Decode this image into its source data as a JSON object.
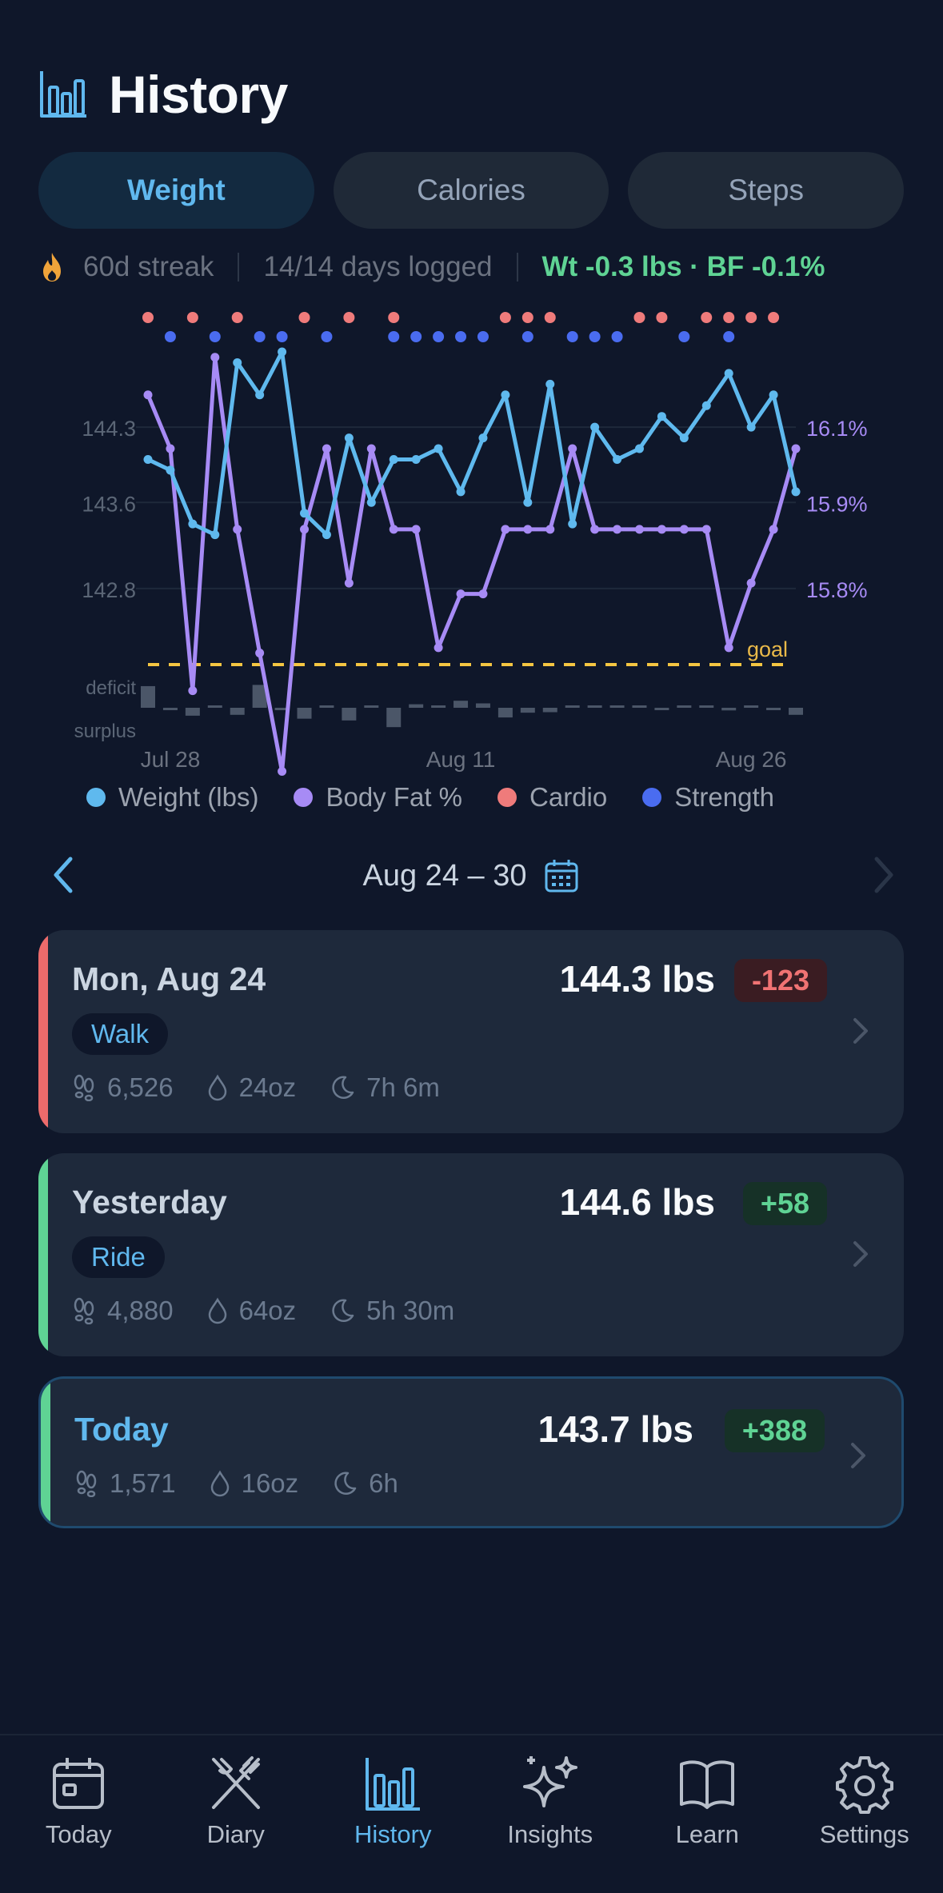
{
  "header": {
    "title": "History",
    "icon": "bar-chart-icon"
  },
  "tabs": [
    {
      "label": "Weight",
      "active": true
    },
    {
      "label": "Calories",
      "active": false
    },
    {
      "label": "Steps",
      "active": false
    }
  ],
  "status": {
    "streak": "60d streak",
    "logged": "14/14 days logged",
    "delta": "Wt -0.3 lbs · BF -0.1%"
  },
  "chart_data": {
    "type": "line",
    "x_ticks": [
      "Jul 28",
      "Aug 11",
      "Aug 26"
    ],
    "x_tick_index": [
      1,
      14,
      27
    ],
    "weight_ticks": [
      "144.3",
      "143.6",
      "142.8"
    ],
    "weight_tick_values": [
      144.3,
      143.6,
      142.8
    ],
    "weight_range": [
      142.1,
      145.0
    ],
    "bodyfat_ticks": [
      "16.1%",
      "15.9%",
      "15.8%"
    ],
    "bodyfat_tick_values": [
      16.1,
      15.9,
      15.8
    ],
    "bodyfat_range": [
      15.7,
      16.28
    ],
    "goal_label": "goal",
    "balance_labels": {
      "deficit": "deficit",
      "surplus": "surplus"
    },
    "series": [
      {
        "name": "Weight (lbs)",
        "color": "#5fb9ee",
        "axis": "left",
        "values": [
          144.0,
          143.9,
          143.4,
          143.3,
          144.9,
          144.6,
          145.0,
          143.5,
          143.3,
          144.2,
          143.6,
          144.0,
          144.0,
          144.1,
          143.7,
          144.2,
          144.6,
          143.6,
          144.7,
          143.4,
          144.3,
          144.0,
          144.1,
          144.4,
          144.2,
          144.5,
          144.8,
          144.3,
          144.6,
          143.7
        ]
      },
      {
        "name": "Body Fat %",
        "color": "#a78bf5",
        "axis": "right",
        "values": [
          16.2,
          16.1,
          15.65,
          16.27,
          15.95,
          15.72,
          15.5,
          15.95,
          16.1,
          15.85,
          16.1,
          15.95,
          15.95,
          15.73,
          15.83,
          15.83,
          15.95,
          15.95,
          15.95,
          16.1,
          15.95,
          15.95,
          15.95,
          15.95,
          15.95,
          15.95,
          15.73,
          15.85,
          15.95,
          16.1
        ]
      },
      {
        "name": "Cardio",
        "color": "#ef7b7b",
        "days": [
          0,
          2,
          4,
          7,
          9,
          11,
          16,
          17,
          18,
          22,
          23,
          25,
          26,
          27,
          28
        ]
      },
      {
        "name": "Strength",
        "color": "#4a6cf0",
        "days": [
          1,
          3,
          5,
          6,
          8,
          11,
          12,
          13,
          14,
          15,
          17,
          19,
          20,
          21,
          24,
          26
        ]
      }
    ],
    "calorie_balance": [
      -123,
      0,
      45,
      -6,
      40,
      -130,
      0,
      62,
      -10,
      72,
      -4,
      110,
      -20,
      -8,
      -40,
      -25,
      55,
      28,
      25,
      -8,
      -8,
      -8,
      -12,
      0,
      -8,
      -8,
      15,
      -8,
      10,
      40
    ]
  },
  "week_nav": {
    "range": "Aug 24 – 30"
  },
  "cards": [
    {
      "day": "Mon, Aug 24",
      "weight": "144.3 lbs",
      "badge": "-123",
      "badge_type": "neg",
      "activity": "Walk",
      "steps": "6,526",
      "water": "24oz",
      "sleep": "7h 6m",
      "accent": "#ec6b6b"
    },
    {
      "day": "Yesterday",
      "weight": "144.6 lbs",
      "badge": "+58",
      "badge_type": "pos",
      "activity": "Ride",
      "steps": "4,880",
      "water": "64oz",
      "sleep": "5h 30m",
      "accent": "#5fd394"
    },
    {
      "day": "Today",
      "weight": "143.7 lbs",
      "badge": "+388",
      "badge_type": "pos",
      "steps": "1,571",
      "water": "16oz",
      "sleep": "6h",
      "accent": "#5fd394"
    }
  ],
  "tabbar": [
    {
      "label": "Today",
      "icon": "calendar-icon"
    },
    {
      "label": "Diary",
      "icon": "utensils-icon"
    },
    {
      "label": "History",
      "icon": "bar-chart-icon",
      "active": true
    },
    {
      "label": "Insights",
      "icon": "sparkles-icon"
    },
    {
      "label": "Learn",
      "icon": "book-icon"
    },
    {
      "label": "Settings",
      "icon": "gear-icon"
    }
  ]
}
